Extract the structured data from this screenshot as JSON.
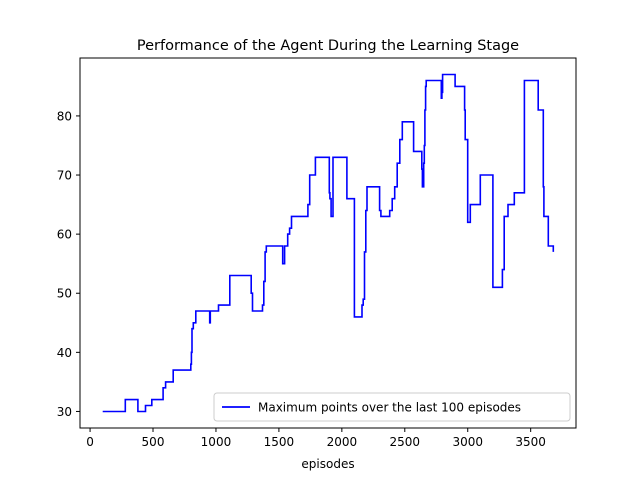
{
  "chart_data": {
    "type": "line",
    "title": "Performance of the Agent During the Learning Stage",
    "xlabel": "episodes",
    "ylabel": "",
    "xlim": [
      -80,
      3860
    ],
    "ylim": [
      27.2,
      89.8
    ],
    "xticks": [
      0,
      500,
      1000,
      1500,
      2000,
      2500,
      3000,
      3500
    ],
    "yticks": [
      30,
      40,
      50,
      60,
      70,
      80
    ],
    "grid": false,
    "legend_position": "lower right",
    "series": [
      {
        "name": "Maximum points over the last 100 episodes",
        "color": "#0000ff",
        "step": true,
        "x": [
          100,
          280,
          380,
          440,
          490,
          580,
          600,
          650,
          660,
          790,
          800,
          805,
          810,
          820,
          840,
          950,
          955,
          960,
          1020,
          1110,
          1270,
          1280,
          1290,
          1360,
          1370,
          1380,
          1390,
          1400,
          1420,
          1530,
          1545,
          1560,
          1570,
          1585,
          1600,
          1630,
          1730,
          1745,
          1790,
          1900,
          1905,
          1915,
          1930,
          2020,
          2040,
          2100,
          2150,
          2160,
          2170,
          2180,
          2190,
          2200,
          2210,
          2300,
          2310,
          2330,
          2360,
          2380,
          2400,
          2420,
          2440,
          2460,
          2480,
          2570,
          2630,
          2635,
          2640,
          2650,
          2655,
          2660,
          2665,
          2670,
          2720,
          2790,
          2795,
          2800,
          2810,
          2900,
          2970,
          2975,
          2980,
          3000,
          3005,
          3020,
          3100,
          3190,
          3200,
          3270,
          3275,
          3290,
          3320,
          3370,
          3450,
          3560,
          3595,
          3600,
          3605,
          3625,
          3640,
          3680
        ],
        "y": [
          30,
          32,
          30,
          31,
          32,
          34,
          35,
          35,
          37,
          37,
          38,
          40,
          44,
          45,
          47,
          45,
          47,
          47,
          48,
          53,
          53,
          50,
          47,
          47,
          48,
          52,
          57,
          58,
          58,
          55,
          58,
          58,
          60,
          61,
          63,
          63,
          65,
          70,
          73,
          67,
          66,
          63,
          73,
          73,
          66,
          46,
          46,
          48,
          49,
          57,
          64,
          68,
          68,
          64,
          63,
          63,
          63,
          64,
          66,
          68,
          72,
          76,
          79,
          74,
          74,
          71,
          68,
          72,
          75,
          81,
          85,
          86,
          86,
          83,
          84,
          87,
          87,
          85,
          85,
          81,
          76,
          62,
          62,
          65,
          70,
          70,
          51,
          51,
          54,
          63,
          65,
          67,
          86,
          81,
          81,
          68,
          63,
          63,
          58,
          57
        ]
      }
    ]
  }
}
